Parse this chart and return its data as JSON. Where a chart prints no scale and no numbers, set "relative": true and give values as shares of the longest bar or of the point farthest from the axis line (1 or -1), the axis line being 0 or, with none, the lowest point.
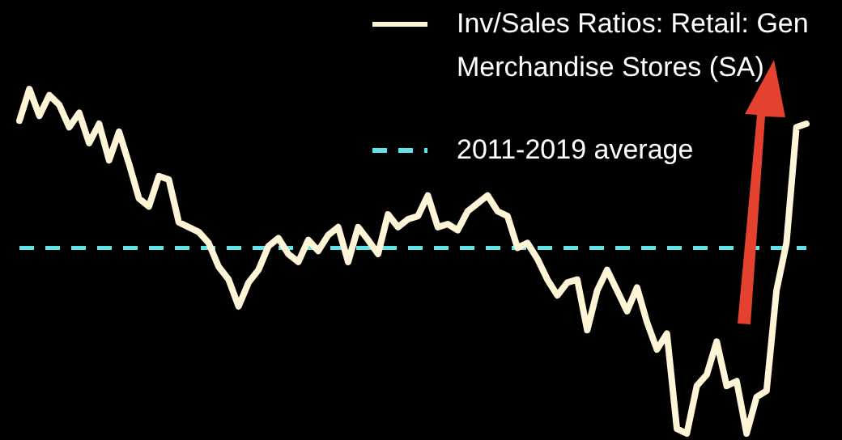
{
  "chart_data": {
    "type": "line",
    "relative": true,
    "legend": "top right",
    "line_style": "solid",
    "marker": "none",
    "categories": [
      null,
      null,
      null,
      null,
      null,
      null,
      null,
      null,
      null,
      null,
      null,
      null,
      null,
      null,
      null,
      null,
      null,
      null,
      null,
      null,
      null,
      null,
      null,
      null,
      null,
      null,
      null,
      null,
      null,
      null,
      null,
      null,
      null,
      null,
      null,
      null,
      null,
      null,
      null,
      null,
      null,
      null,
      null,
      null,
      null,
      null,
      null,
      null,
      null,
      null,
      null,
      null,
      null,
      null,
      null,
      null,
      null,
      null,
      null,
      null,
      null,
      null,
      null,
      null,
      null,
      null,
      null,
      null,
      null,
      null,
      null,
      null,
      null,
      null,
      null,
      null,
      null,
      null,
      null,
      null
    ],
    "series": [
      {
        "name": "Inv/Sales Ratios: Retail: Gen Merchandise Stores (SA)",
        "color": "#fdf5d6",
        "values": [
          0.908,
          1,
          0.922,
          0.982,
          0.954,
          0.889,
          0.931,
          0.843,
          0.899,
          0.793,
          0.876,
          0.783,
          0.682,
          0.659,
          0.747,
          0.737,
          0.613,
          0.599,
          0.585,
          0.553,
          0.484,
          0.447,
          0.369,
          0.438,
          0.475,
          0.544,
          0.567,
          0.521,
          0.498,
          0.562,
          0.53,
          0.576,
          0.599,
          0.498,
          0.599,
          0.562,
          0.521,
          0.636,
          0.599,
          0.622,
          0.631,
          0.691,
          0.599,
          0.608,
          0.59,
          0.645,
          0.668,
          0.691,
          0.645,
          0.631,
          0.539,
          0.553,
          0.507,
          0.447,
          0.401,
          0.438,
          0.447,
          0.3,
          0.415,
          0.475,
          0.415,
          0.355,
          0.424,
          0.323,
          0.244,
          0.29,
          0.014,
          0,
          0.138,
          0.171,
          0.267,
          0.138,
          0.152,
          0,
          0.106,
          0.124,
          0.415,
          0.553,
          0.889,
          0.899
        ]
      }
    ],
    "ref_lines": [
      {
        "axis": "y",
        "value": 0.539,
        "label": "2011-2019 average",
        "color": "#5fe3e6",
        "line_style": "dashed"
      }
    ]
  }
}
